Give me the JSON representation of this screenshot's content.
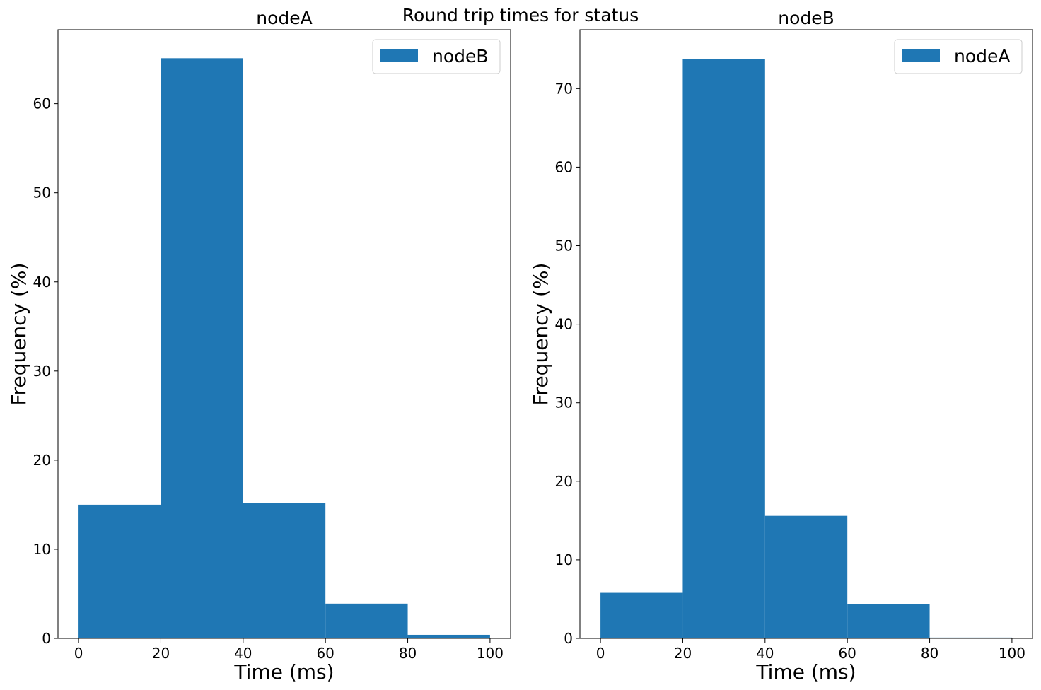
{
  "figure": {
    "suptitle": "Round trip times for status"
  },
  "chart_data": [
    {
      "type": "bar",
      "title": "nodeA",
      "xlabel": "Time (ms)",
      "ylabel": "Frequency (%)",
      "bin_edges": [
        0,
        20,
        40,
        60,
        80,
        100
      ],
      "values": [
        15.0,
        65.1,
        15.2,
        3.9,
        0.4
      ],
      "series": [
        {
          "name": "nodeB",
          "values": [
            15.0,
            65.1,
            15.2,
            3.9,
            0.4
          ]
        }
      ],
      "xlim": [
        -5,
        105
      ],
      "ylim": [
        0,
        68.3
      ],
      "xticks": [
        0,
        20,
        40,
        60,
        80,
        100
      ],
      "yticks": [
        0,
        10,
        20,
        30,
        40,
        50,
        60
      ],
      "grid": false,
      "legend": "top-right",
      "color": "#1f77b4"
    },
    {
      "type": "bar",
      "title": "nodeB",
      "xlabel": "Time (ms)",
      "ylabel": "Frequency (%)",
      "bin_edges": [
        0,
        20,
        40,
        60,
        80,
        100
      ],
      "values": [
        5.8,
        73.8,
        15.6,
        4.4,
        0.1
      ],
      "series": [
        {
          "name": "nodeA",
          "values": [
            5.8,
            73.8,
            15.6,
            4.4,
            0.1
          ]
        }
      ],
      "xlim": [
        -5,
        105
      ],
      "ylim": [
        0,
        77.5
      ],
      "xticks": [
        0,
        20,
        40,
        60,
        80,
        100
      ],
      "yticks": [
        0,
        10,
        20,
        30,
        40,
        50,
        60,
        70
      ],
      "grid": false,
      "legend": "top-right",
      "color": "#1f77b4"
    }
  ]
}
